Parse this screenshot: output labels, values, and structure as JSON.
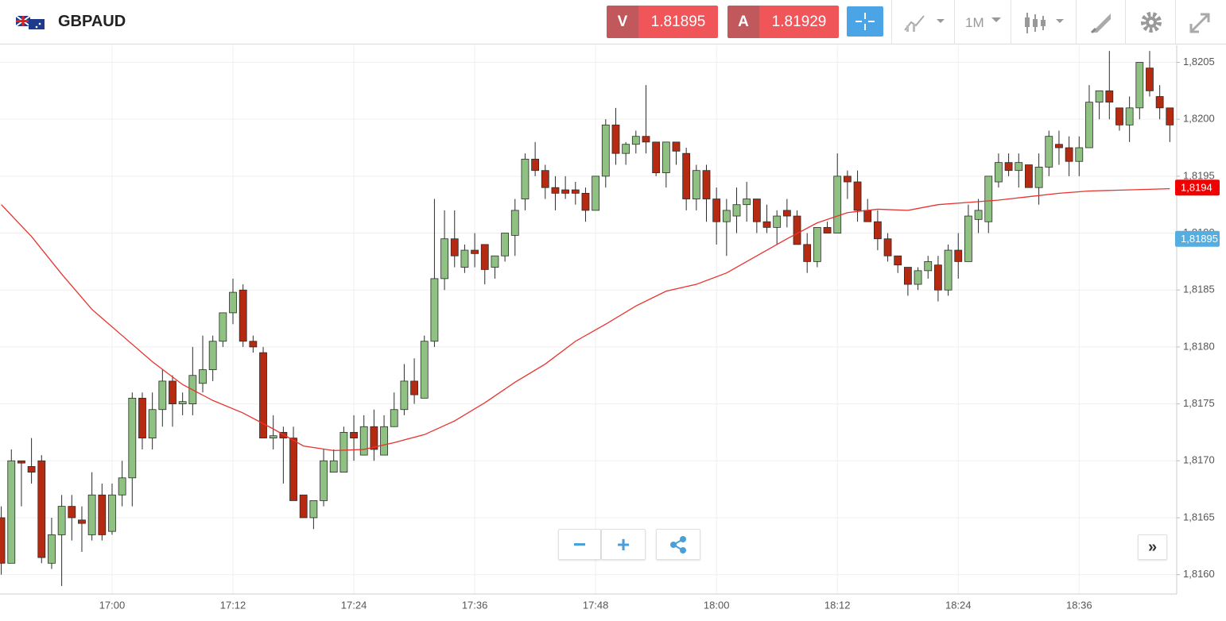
{
  "header": {
    "symbol": "GBPAUD",
    "sell": {
      "label": "V",
      "price": "1.81895"
    },
    "buy": {
      "label": "A",
      "price": "1.81929"
    },
    "timeframe": "1M"
  },
  "chart_data": {
    "type": "candlestick",
    "categories": [
      null,
      null,
      null,
      null,
      null,
      null,
      null,
      null,
      null,
      null,
      null,
      "17:00",
      null,
      null,
      null,
      null,
      null,
      null,
      null,
      null,
      null,
      null,
      null,
      "17:12",
      null,
      null,
      null,
      null,
      null,
      null,
      null,
      null,
      null,
      null,
      null,
      "17:24",
      null,
      null,
      null,
      null,
      null,
      null,
      null,
      null,
      null,
      null,
      null,
      "17:36",
      null,
      null,
      null,
      null,
      null,
      null,
      null,
      null,
      null,
      null,
      null,
      "17:48",
      null,
      null,
      null,
      null,
      null,
      null,
      null,
      null,
      null,
      null,
      null,
      "18:00",
      null,
      null,
      null,
      null,
      null,
      null,
      null,
      null,
      null,
      null,
      null,
      "18:12",
      null,
      null,
      null,
      null,
      null,
      null,
      null,
      null,
      null,
      null,
      null,
      "18:24",
      null,
      null,
      null,
      null,
      null,
      null,
      null,
      null,
      null,
      null,
      null,
      "18:36",
      null,
      null,
      null,
      null,
      null,
      null,
      null,
      null,
      null
    ],
    "open": [
      1.8165,
      1.8161,
      1.817,
      1.81695,
      1.817,
      1.8161,
      1.81635,
      1.8166,
      1.81648,
      1.81635,
      1.8167,
      1.81638,
      1.8167,
      1.81685,
      1.81755,
      1.8172,
      1.81745,
      1.8177,
      1.8175,
      1.8175,
      1.81768,
      1.8178,
      1.81805,
      1.8183,
      1.8185,
      1.81805,
      1.81795,
      1.8172,
      1.81725,
      1.8172,
      1.8167,
      1.8165,
      1.81665,
      1.8169,
      1.8169,
      1.81725,
      1.81705,
      1.8173,
      1.81705,
      1.8173,
      1.81745,
      1.8177,
      1.81755,
      1.81805,
      1.8186,
      1.81895,
      1.8187,
      1.81885,
      1.8189,
      1.8187,
      1.8188,
      1.81898,
      1.8193,
      1.81965,
      1.81955,
      1.8194,
      1.81938,
      1.81938,
      1.81935,
      1.8192,
      1.8195,
      1.81995,
      1.8197,
      1.81978,
      1.81985,
      1.8198,
      1.81953,
      1.8198,
      1.8197,
      1.8193,
      1.81955,
      1.8193,
      1.8191,
      1.81915,
      1.81925,
      1.8193,
      1.8191,
      1.81905,
      1.8192,
      1.81915,
      1.8189,
      1.81875,
      1.81905,
      1.819,
      1.8195,
      1.81945,
      1.8192,
      1.8191,
      1.81895,
      1.8188,
      1.8187,
      1.81855,
      1.81867,
      1.81872,
      1.8185,
      1.81885,
      1.81875,
      1.81912,
      1.8191,
      1.81945,
      1.81962,
      1.81955,
      1.8196,
      1.8194,
      1.81958,
      1.81978,
      1.81975,
      1.81963,
      1.81975,
      1.82015,
      1.82025,
      1.8201,
      1.81995,
      1.8201,
      1.82045,
      1.8202,
      1.8201
    ],
    "high": [
      1.8166,
      1.8171,
      1.817,
      1.8172,
      1.81705,
      1.8165,
      1.8167,
      1.8167,
      1.8166,
      1.8169,
      1.8168,
      1.8168,
      1.817,
      1.8176,
      1.8176,
      1.8176,
      1.8178,
      1.81775,
      1.8176,
      1.818,
      1.8181,
      1.8181,
      1.8183,
      1.8186,
      1.81855,
      1.8181,
      1.818,
      1.8174,
      1.8173,
      1.8173,
      1.8167,
      1.81665,
      1.8171,
      1.8171,
      1.8173,
      1.8174,
      1.8174,
      1.81745,
      1.8174,
      1.8176,
      1.81785,
      1.8179,
      1.8181,
      1.8193,
      1.8192,
      1.8192,
      1.8189,
      1.819,
      1.8189,
      1.8188,
      1.819,
      1.8193,
      1.8197,
      1.8198,
      1.8196,
      1.8195,
      1.8195,
      1.81945,
      1.8194,
      1.8195,
      1.82,
      1.8201,
      1.8198,
      1.8199,
      1.8203,
      1.8198,
      1.8198,
      1.8198,
      1.81975,
      1.8196,
      1.8196,
      1.8194,
      1.8193,
      1.8194,
      1.81945,
      1.8193,
      1.81925,
      1.8192,
      1.8193,
      1.8192,
      1.819,
      1.81905,
      1.8191,
      1.8197,
      1.81955,
      1.81955,
      1.8193,
      1.8192,
      1.819,
      1.8188,
      1.8187,
      1.8187,
      1.8188,
      1.8188,
      1.8189,
      1.819,
      1.81925,
      1.8193,
      1.8195,
      1.8197,
      1.8197,
      1.8197,
      1.8196,
      1.8197,
      1.8199,
      1.8199,
      1.81985,
      1.81985,
      1.8203,
      1.82025,
      1.8206,
      1.8201,
      1.8202,
      1.8205,
      1.8206,
      1.8203,
      1.8201
    ],
    "low": [
      1.816,
      1.8161,
      1.8166,
      1.8168,
      1.8161,
      1.81605,
      1.8159,
      1.8163,
      1.8162,
      1.8163,
      1.8163,
      1.81635,
      1.8166,
      1.8166,
      1.8171,
      1.8171,
      1.8173,
      1.8173,
      1.8174,
      1.8174,
      1.8176,
      1.8177,
      1.818,
      1.8182,
      1.818,
      1.81795,
      1.8172,
      1.8171,
      1.8168,
      1.81665,
      1.8165,
      1.8164,
      1.8166,
      1.8169,
      1.8169,
      1.817,
      1.81705,
      1.817,
      1.81705,
      1.8173,
      1.8174,
      1.8175,
      1.81755,
      1.818,
      1.8185,
      1.8187,
      1.81865,
      1.8187,
      1.81855,
      1.8186,
      1.81875,
      1.8188,
      1.8192,
      1.8195,
      1.8193,
      1.8192,
      1.8193,
      1.81925,
      1.8191,
      1.8192,
      1.8194,
      1.8196,
      1.8196,
      1.8197,
      1.8197,
      1.8195,
      1.8194,
      1.8196,
      1.8192,
      1.8192,
      1.8191,
      1.8189,
      1.8188,
      1.819,
      1.8191,
      1.819,
      1.819,
      1.8189,
      1.81905,
      1.8189,
      1.81865,
      1.8187,
      1.819,
      1.819,
      1.8193,
      1.8191,
      1.8191,
      1.81885,
      1.81875,
      1.81865,
      1.81845,
      1.8185,
      1.8186,
      1.8184,
      1.81845,
      1.8186,
      1.81875,
      1.819,
      1.819,
      1.8194,
      1.8195,
      1.8194,
      1.8194,
      1.81925,
      1.8195,
      1.8196,
      1.8195,
      1.8195,
      1.81975,
      1.82,
      1.82,
      1.8199,
      1.8198,
      1.82,
      1.8202,
      1.82,
      1.8198
    ],
    "close": [
      1.8161,
      1.817,
      1.81698,
      1.8169,
      1.81615,
      1.81635,
      1.8166,
      1.8165,
      1.81645,
      1.8167,
      1.81635,
      1.8167,
      1.81685,
      1.81755,
      1.8172,
      1.81745,
      1.8177,
      1.8175,
      1.81752,
      1.81775,
      1.8178,
      1.81805,
      1.8183,
      1.81848,
      1.81805,
      1.818,
      1.8172,
      1.81722,
      1.8172,
      1.81665,
      1.8165,
      1.81665,
      1.817,
      1.817,
      1.81725,
      1.8172,
      1.8173,
      1.8171,
      1.8173,
      1.81745,
      1.8177,
      1.81758,
      1.81805,
      1.8186,
      1.81895,
      1.8188,
      1.81885,
      1.81882,
      1.81868,
      1.8188,
      1.819,
      1.8192,
      1.81965,
      1.81955,
      1.8194,
      1.81935,
      1.81935,
      1.81935,
      1.8192,
      1.8195,
      1.81995,
      1.8197,
      1.81978,
      1.81985,
      1.8198,
      1.81953,
      1.8198,
      1.81972,
      1.8193,
      1.81955,
      1.8193,
      1.8191,
      1.8192,
      1.81925,
      1.8193,
      1.8191,
      1.81905,
      1.81915,
      1.81915,
      1.8189,
      1.81875,
      1.81905,
      1.819,
      1.8195,
      1.81945,
      1.8192,
      1.8191,
      1.81895,
      1.8188,
      1.81872,
      1.81855,
      1.81867,
      1.81875,
      1.8185,
      1.81885,
      1.81875,
      1.81915,
      1.8192,
      1.8195,
      1.81962,
      1.81955,
      1.81962,
      1.8194,
      1.81958,
      1.81985,
      1.81975,
      1.81963,
      1.81975,
      1.82015,
      1.82025,
      1.82015,
      1.81995,
      1.8201,
      1.8205,
      1.82025,
      1.8201,
      1.81995
    ],
    "up_color": "#8fc282",
    "down_color": "#b52a10",
    "outline_color": "#2b2b2b",
    "moving_average": {
      "color": "#e8322e",
      "x": [
        0,
        3,
        6,
        9,
        12,
        15,
        18,
        21,
        24,
        27,
        30,
        33,
        36,
        39,
        42,
        45,
        48,
        51,
        54,
        57,
        60,
        63,
        66,
        69,
        72,
        75,
        78,
        81,
        84,
        87,
        90,
        93,
        96,
        99,
        102,
        105,
        108,
        116
      ],
      "values": [
        1.81925,
        1.81897,
        1.81864,
        1.81833,
        1.8181,
        1.81787,
        1.81767,
        1.81753,
        1.81742,
        1.81728,
        1.81713,
        1.81709,
        1.8171,
        1.81716,
        1.81723,
        1.81735,
        1.81751,
        1.81769,
        1.81785,
        1.81805,
        1.8182,
        1.81836,
        1.81849,
        1.81855,
        1.81865,
        1.8188,
        1.81895,
        1.81909,
        1.81918,
        1.81921,
        1.8192,
        1.81925,
        1.81927,
        1.81929,
        1.81932,
        1.81935,
        1.81937,
        1.81939
      ]
    },
    "ylim": [
      1.81583,
      1.82065
    ],
    "yticks": [
      {
        "value": 1.816,
        "label": "1,8160"
      },
      {
        "value": 1.8165,
        "label": "1,8165"
      },
      {
        "value": 1.817,
        "label": "1,8170"
      },
      {
        "value": 1.8175,
        "label": "1,8175"
      },
      {
        "value": 1.818,
        "label": "1,8180"
      },
      {
        "value": 1.8185,
        "label": "1,8185"
      },
      {
        "value": 1.819,
        "label": "1,8190"
      },
      {
        "value": 1.8195,
        "label": "1,8195"
      },
      {
        "value": 1.82,
        "label": "1,8200"
      },
      {
        "value": 1.8205,
        "label": "1,8205"
      }
    ],
    "price_tags": [
      {
        "value": 1.8194,
        "label": "1,8194",
        "color": "#f00000"
      },
      {
        "value": 1.81895,
        "label": "1,81895",
        "color": "#55aee0"
      }
    ],
    "grid": true
  }
}
